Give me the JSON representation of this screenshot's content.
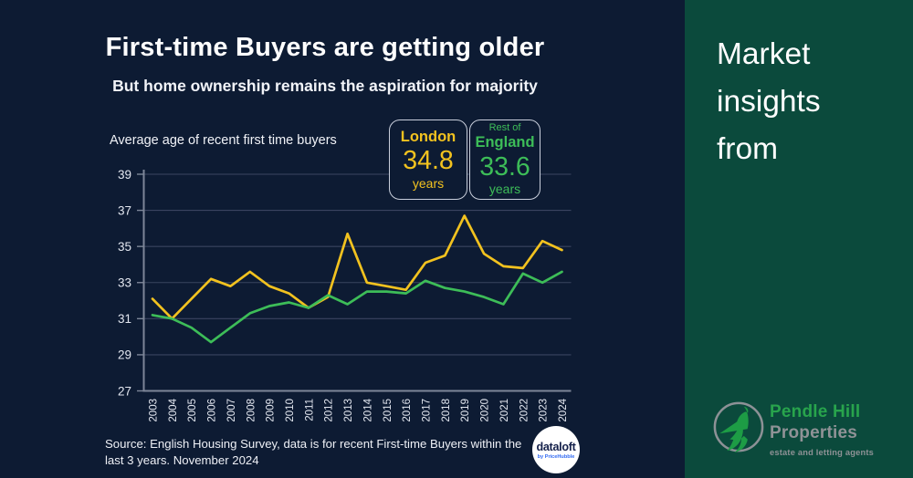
{
  "header": {
    "title": "First-time Buyers are getting older",
    "subtitle": "But home ownership remains the aspiration for majority"
  },
  "chart": {
    "caption": "Average age of recent first time buyers"
  },
  "cards": [
    {
      "region": "London",
      "value": "34.8",
      "unit": "years",
      "color": "#f2c21f"
    },
    {
      "region_line1": "Rest of",
      "region_line2": "England",
      "value": "33.6",
      "unit": "years",
      "color": "#3dbd58"
    }
  ],
  "chart_data": {
    "type": "line",
    "title": "Average age of recent first time buyers",
    "x": [
      2003,
      2004,
      2005,
      2006,
      2007,
      2008,
      2009,
      2010,
      2011,
      2012,
      2013,
      2014,
      2015,
      2016,
      2017,
      2018,
      2019,
      2020,
      2021,
      2022,
      2023,
      2024
    ],
    "series": [
      {
        "name": "London",
        "color": "#f2c21f",
        "values": [
          32.1,
          31.0,
          32.1,
          33.2,
          32.8,
          33.6,
          32.8,
          32.4,
          31.6,
          32.2,
          35.7,
          33.0,
          32.8,
          32.6,
          34.1,
          34.5,
          36.7,
          34.6,
          33.9,
          33.8,
          35.3,
          34.8
        ]
      },
      {
        "name": "Rest of England",
        "color": "#3dbd58",
        "values": [
          31.2,
          31.0,
          30.5,
          29.7,
          30.5,
          31.3,
          31.7,
          31.9,
          31.6,
          32.3,
          31.8,
          32.5,
          32.5,
          32.4,
          33.1,
          32.7,
          32.5,
          32.2,
          31.8,
          33.5,
          33.0,
          33.6
        ]
      }
    ],
    "xlabel": "",
    "ylabel": "",
    "ylim": [
      27,
      39
    ],
    "yticks": [
      27,
      29,
      31,
      33,
      35,
      37,
      39
    ],
    "grid": "horizontal",
    "legend": "none (series values shown in stat cards)",
    "colors": {
      "gridline": "#3a4460",
      "axis": "#7d8698",
      "tick_label": "#e2e6ef"
    }
  },
  "footer": {
    "source_line1": "Source: English Housing Survey, data is for recent First-time Buyers within the",
    "source_line2": "last 3 years. November 2024",
    "dataloft_name": "dataloft",
    "dataloft_sub": "by PriceHubble"
  },
  "panel": {
    "bg_color": "#0b4a3c",
    "lines": [
      "Market",
      "insights",
      "from"
    ],
    "logo": {
      "name_green": "Pendle Hill",
      "name_gray": "Properties",
      "tagline": "estate and letting agents",
      "green": "#28a44c",
      "gray": "#8f9296"
    }
  },
  "page": {
    "bg_color": "#0d1b33"
  }
}
